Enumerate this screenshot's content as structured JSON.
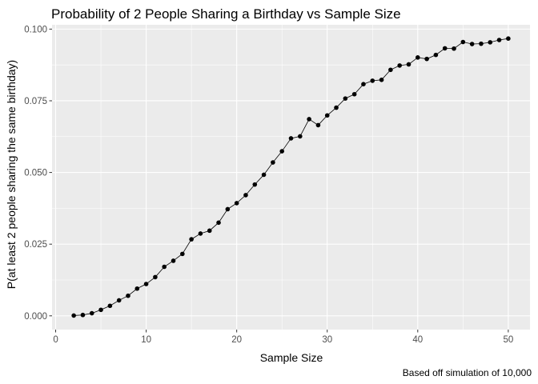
{
  "chart_data": {
    "type": "line",
    "title": "Probability of 2 People Sharing a Birthday vs Sample Size",
    "xlabel": "Sample Size",
    "ylabel": "P(at least 2 people sharing the same birthday)",
    "caption": "Based off simulation of 10,000",
    "xlim": [
      -0.4,
      52.4
    ],
    "ylim": [
      -0.0048,
      0.1015
    ],
    "x_ticks": [
      0,
      10,
      20,
      30,
      40,
      50
    ],
    "y_ticks": [
      0.0,
      0.025,
      0.05,
      0.075,
      0.1
    ],
    "x_tick_labels": [
      "0",
      "10",
      "20",
      "30",
      "40",
      "50"
    ],
    "y_tick_labels": [
      "0.000",
      "0.025",
      "0.050",
      "0.075",
      "0.100"
    ],
    "grid": true,
    "legend": "none",
    "colors": {
      "panel": "#ebebeb",
      "grid": "#ffffff",
      "series": "#000000"
    },
    "series": [
      {
        "x": [
          2,
          3,
          4,
          5,
          6,
          7,
          8,
          9,
          10,
          11,
          12,
          13,
          14,
          15,
          16,
          17,
          18,
          19,
          20,
          21,
          22,
          23,
          24,
          25,
          26,
          27,
          28,
          29,
          30,
          31,
          32,
          33,
          34,
          35,
          36,
          37,
          38,
          39,
          40,
          41,
          42,
          43,
          44,
          45,
          46,
          47,
          48,
          49,
          50
        ],
        "values": [
          0.0001,
          0.0003,
          0.0009,
          0.0021,
          0.0035,
          0.0054,
          0.007,
          0.0095,
          0.0111,
          0.0135,
          0.0171,
          0.0192,
          0.0216,
          0.0267,
          0.0287,
          0.0297,
          0.0325,
          0.0372,
          0.0393,
          0.0421,
          0.0458,
          0.0492,
          0.0535,
          0.0574,
          0.0619,
          0.0626,
          0.0686,
          0.0665,
          0.0699,
          0.0726,
          0.0758,
          0.0773,
          0.0808,
          0.082,
          0.0823,
          0.0858,
          0.0873,
          0.0877,
          0.0901,
          0.0896,
          0.091,
          0.0933,
          0.0932,
          0.0955,
          0.0948,
          0.0949,
          0.0954,
          0.0962,
          0.0967
        ]
      }
    ]
  }
}
